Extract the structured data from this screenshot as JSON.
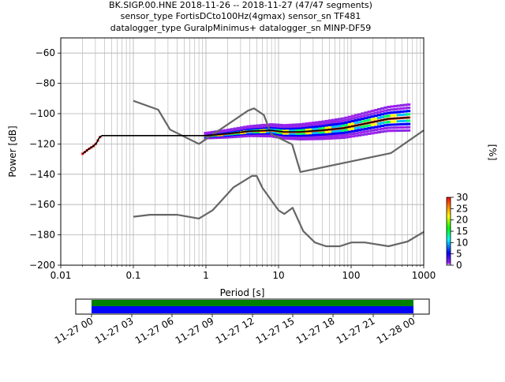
{
  "title": {
    "line1": "BK.SIGP.00.HNE   2018-11-26 -- 2018-11-27  (47/47 segments)",
    "line2": "sensor_type FortisDCto100Hz(4gmax) sensor_sn TF481",
    "line3": "datalogger_type GuralpMinimus+ datalogger_sn MINP-DF59"
  },
  "chart_data": [
    {
      "type": "heatmap",
      "title": "BK.SIGP.00.HNE   2018-11-26 -- 2018-11-27  (47/47 segments)",
      "xlabel": "Period [s]",
      "ylabel": "Power [dB]",
      "xscale": "log",
      "xlim": [
        0.01,
        1000
      ],
      "ylim": [
        -200,
        -50
      ],
      "x_ticks": [
        0.01,
        0.1,
        1,
        10,
        100,
        1000
      ],
      "x_tick_labels": [
        "0.01",
        "0.1",
        "1",
        "10",
        "100",
        "1000"
      ],
      "y_ticks": [
        -200,
        -180,
        -160,
        -140,
        -120,
        -100,
        -80,
        -60
      ],
      "y_tick_labels": [
        "−200",
        "−180",
        "−160",
        "−140",
        "−120",
        "−100",
        "−80",
        "−60"
      ],
      "grid": true,
      "series": [
        {
          "kind": "noise-model-high",
          "color": "#666666",
          "x": [
            0.1,
            0.22,
            0.32,
            0.8,
            3.8,
            4.6,
            6.3,
            7.9,
            15.4,
            20,
            354.8,
            1000
          ],
          "y": [
            -91.5,
            -97.4,
            -110.5,
            -120,
            -98,
            -96.5,
            -101,
            -113.5,
            -120.3,
            -138.5,
            -126,
            -111
          ]
        },
        {
          "kind": "noise-model-low",
          "color": "#666666",
          "x": [
            0.1,
            0.17,
            0.4,
            0.8,
            1.24,
            2.4,
            4.3,
            5,
            6,
            10,
            12,
            15.6,
            21.9,
            31.6,
            45,
            70,
            101,
            154,
            328,
            600,
            1000
          ],
          "y": [
            -168,
            -166.7,
            -166.7,
            -169.2,
            -163.7,
            -148.6,
            -141.1,
            -141.1,
            -149,
            -163.8,
            -166.2,
            -162.1,
            -177.5,
            -185,
            -187.5,
            -187.5,
            -185,
            -185,
            -187.5,
            -184.4,
            -178
          ]
        },
        {
          "kind": "mode",
          "color": "#000000",
          "x": [
            0.02,
            0.024,
            0.028,
            0.031,
            0.034,
            0.037,
            0.05,
            0.1,
            0.5,
            1,
            2,
            4,
            8,
            12,
            20,
            40,
            80,
            160,
            320,
            640
          ],
          "y": [
            -126.5,
            -123.5,
            -121.5,
            -119.5,
            -115.8,
            -114.5,
            -114.5,
            -114.5,
            -114.5,
            -114.5,
            -113.2,
            -111.5,
            -111,
            -112,
            -112,
            -111,
            -109.5,
            -106.5,
            -103.5,
            -102.5
          ]
        }
      ],
      "colorbar": {
        "label": "[%]",
        "min": 0,
        "max": 30,
        "ticks": [
          0,
          5,
          10,
          15,
          20,
          25,
          30
        ],
        "tick_labels": [
          "0",
          "5",
          "10",
          "15",
          "20",
          "25",
          "30"
        ]
      }
    },
    {
      "type": "timeline",
      "x_tick_labels": [
        "11-27 00",
        "11-27 03",
        "11-27 06",
        "11-27 09",
        "11-27 12",
        "11-27 15",
        "11-27 18",
        "11-27 21",
        "11-28 00"
      ],
      "coverage": [
        {
          "color": "#008000",
          "start": "11-27 00",
          "end": "11-28 00"
        },
        {
          "color": "#0000ff",
          "start": "11-27 00",
          "end": "11-28 00"
        }
      ]
    }
  ]
}
